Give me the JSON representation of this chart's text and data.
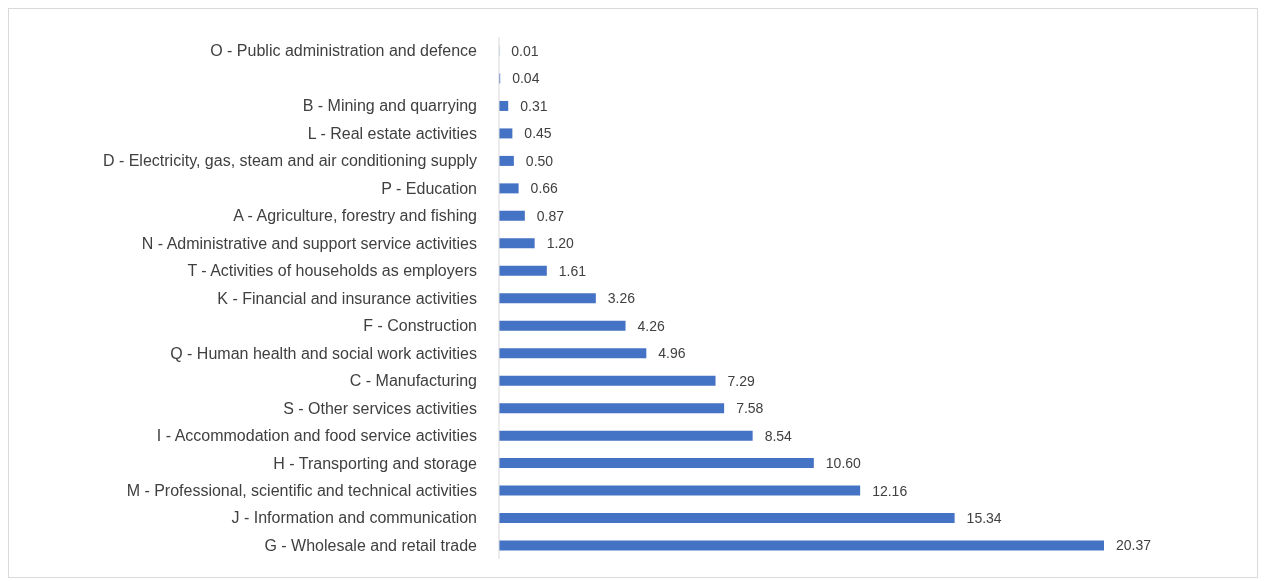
{
  "chart_data": {
    "type": "bar",
    "orientation": "horizontal",
    "data_labels": true,
    "grid": false,
    "legend": false,
    "color": "#4472c4",
    "categories": [
      "O - Public administration and defence",
      null,
      "B - Mining and quarrying",
      "L - Real estate activities",
      "D - Electricity, gas, steam and air conditioning supply",
      "P - Education",
      "A - Agriculture, forestry and fishing",
      "N - Administrative and support service activities",
      "T - Activities of households as employers",
      "K - Financial and insurance activities",
      "F - Construction",
      "Q - Human health and social work activities",
      "C - Manufacturing",
      "S - Other services activities",
      "I - Accommodation and food service activities",
      "H - Transporting and storage",
      "M - Professional, scientific and technical activities",
      "J - Information and communication",
      "G - Wholesale and retail trade"
    ],
    "values": [
      0.01,
      0.04,
      0.31,
      0.45,
      0.5,
      0.66,
      0.87,
      1.2,
      1.61,
      3.26,
      4.26,
      4.96,
      7.29,
      7.58,
      8.54,
      10.6,
      12.16,
      15.34,
      20.37
    ],
    "value_labels": [
      "0.01",
      "0.04",
      "0.31",
      "0.45",
      "0.50",
      "0.66",
      "0.87",
      "1.20",
      "1.61",
      "3.26",
      "4.26",
      "4.96",
      "7.29",
      "7.58",
      "8.54",
      "10.60",
      "12.16",
      "15.34",
      "20.37"
    ]
  }
}
